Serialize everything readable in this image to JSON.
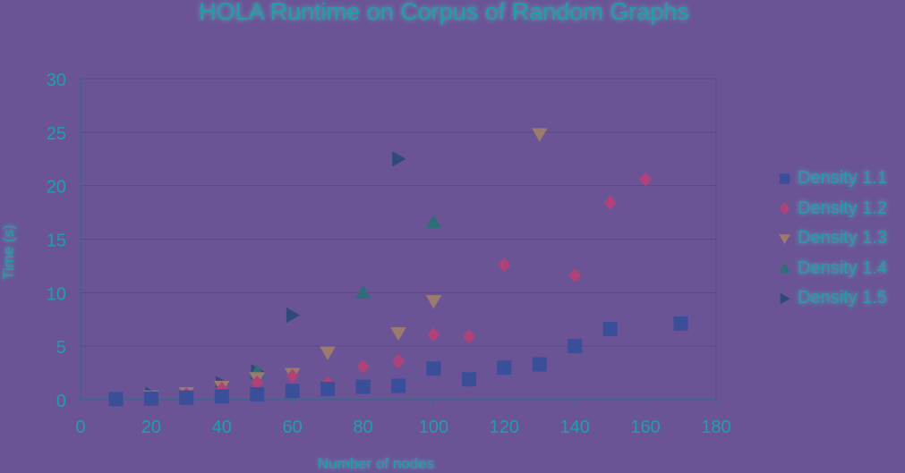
{
  "chart_data": {
    "type": "scatter",
    "title": "HOLA Runtime on Corpus of Random Graphs",
    "xlabel": "Number of nodes",
    "ylabel": "Time (s)",
    "xlim": [
      0,
      180
    ],
    "ylim": [
      0,
      30
    ],
    "x_ticks": [
      0,
      20,
      40,
      60,
      80,
      100,
      120,
      140,
      160,
      180
    ],
    "y_ticks": [
      0,
      5,
      10,
      15,
      20,
      25,
      30
    ],
    "grid": "horizontal",
    "legend_position": "right",
    "series": [
      {
        "name": "Density 1.1",
        "marker": "square",
        "color": "#3b4e9a",
        "points": [
          [
            10,
            0.05
          ],
          [
            20,
            0.1
          ],
          [
            30,
            0.2
          ],
          [
            40,
            0.3
          ],
          [
            50,
            0.5
          ],
          [
            60,
            0.8
          ],
          [
            70,
            1.0
          ],
          [
            80,
            1.2
          ],
          [
            90,
            1.3
          ],
          [
            100,
            2.9
          ],
          [
            110,
            1.9
          ],
          [
            120,
            3.0
          ],
          [
            130,
            3.3
          ],
          [
            140,
            5.0
          ],
          [
            150,
            6.6
          ],
          [
            170,
            7.1
          ]
        ]
      },
      {
        "name": "Density 1.2",
        "marker": "diamond",
        "color": "#b0427a",
        "points": [
          [
            20,
            0.2
          ],
          [
            30,
            0.5
          ],
          [
            40,
            1.0
          ],
          [
            50,
            1.6
          ],
          [
            60,
            2.2
          ],
          [
            70,
            1.5
          ],
          [
            80,
            3.1
          ],
          [
            90,
            3.6
          ],
          [
            100,
            6.1
          ],
          [
            110,
            5.9
          ],
          [
            120,
            12.6
          ],
          [
            140,
            11.6
          ],
          [
            150,
            18.4
          ],
          [
            160,
            20.6
          ]
        ]
      },
      {
        "name": "Density 1.3",
        "marker": "triangle-down",
        "color": "#9c7a6e",
        "points": [
          [
            20,
            0.3
          ],
          [
            30,
            0.6
          ],
          [
            40,
            1.2
          ],
          [
            50,
            2.0
          ],
          [
            60,
            2.4
          ],
          [
            70,
            4.4
          ],
          [
            90,
            6.2
          ],
          [
            100,
            9.2
          ],
          [
            130,
            24.8
          ]
        ]
      },
      {
        "name": "Density 1.4",
        "marker": "triangle-up",
        "color": "#2f6d78",
        "points": [
          [
            30,
            0.5
          ],
          [
            40,
            1.0
          ],
          [
            50,
            2.6
          ],
          [
            80,
            10.0
          ],
          [
            100,
            16.6
          ]
        ]
      },
      {
        "name": "Density 1.5",
        "marker": "triangle-right",
        "color": "#2f4a78",
        "points": [
          [
            20,
            0.5
          ],
          [
            40,
            1.5
          ],
          [
            50,
            2.6
          ],
          [
            60,
            7.9
          ],
          [
            90,
            22.5
          ]
        ]
      }
    ]
  }
}
